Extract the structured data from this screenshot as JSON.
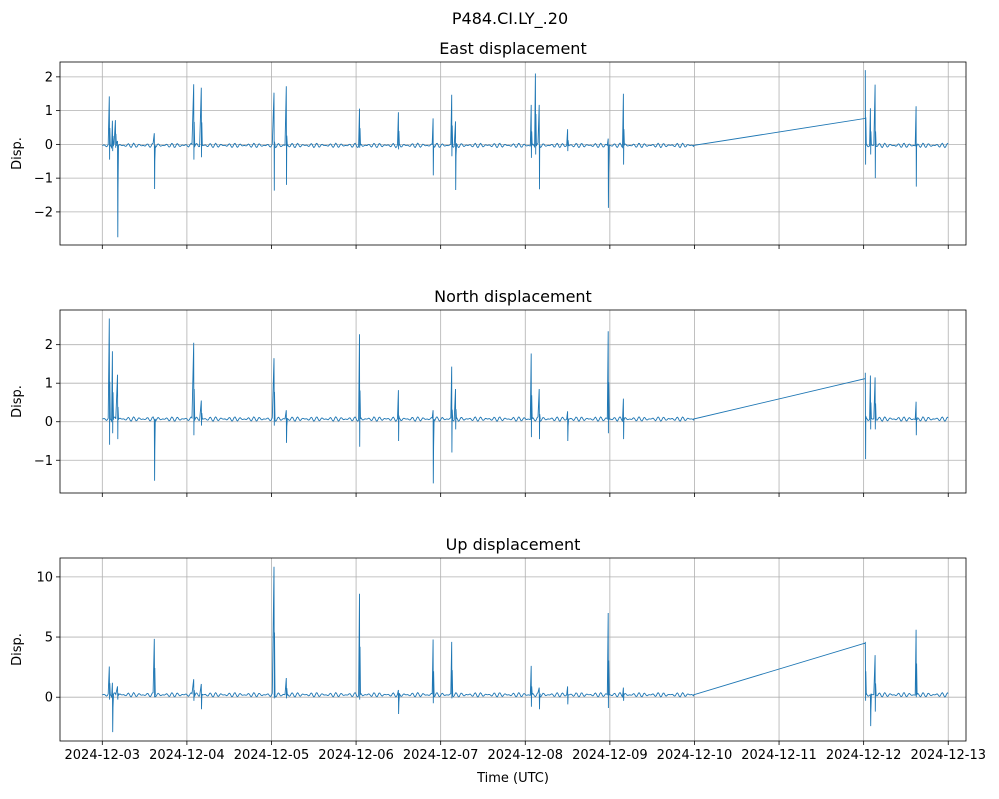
{
  "chart_data": {
    "type": "line",
    "title": "P484.CI.LY_.20",
    "xlabel": "Time (UTC)",
    "x_origin": "2024-12-03",
    "x_unit": "days since x_origin",
    "xlim_days": [
      -0.5,
      10.21
    ],
    "xticks_days": [
      0,
      1,
      2,
      3,
      4,
      5,
      6,
      7,
      8,
      9,
      10
    ],
    "xtick_labels": [
      "2024-12-03",
      "2024-12-04",
      "2024-12-05",
      "2024-12-06",
      "2024-12-07",
      "2024-12-08",
      "2024-12-09",
      "2024-12-10",
      "2024-12-11",
      "2024-12-12",
      "2024-12-13"
    ],
    "grid": true,
    "line_color": "#1f77b4",
    "data_start_day": 0.0,
    "gap": [
      6.99,
      9.02
    ],
    "data_end_day": 10.0,
    "panels": [
      {
        "title": "East displacement",
        "ylabel": "Disp.",
        "ylim": [
          -2.98,
          2.44
        ],
        "yticks": [
          2,
          1,
          0,
          -1,
          -2
        ],
        "ytick_labels": [
          "2",
          "1",
          "0",
          "−1",
          "−2"
        ],
        "baseline": -0.03,
        "gap_end_value": 0.77,
        "spikes": [
          [
            0.083,
            1.42,
            -0.45
          ],
          [
            0.12,
            0.7,
            -0.2
          ],
          [
            0.155,
            0.72,
            -0.1
          ],
          [
            0.18,
            0.1,
            -2.75
          ],
          [
            0.615,
            0.33,
            -1.32
          ],
          [
            1.08,
            1.78,
            -0.45
          ],
          [
            1.17,
            1.68,
            -0.38
          ],
          [
            2.03,
            1.53,
            -1.37
          ],
          [
            2.175,
            1.72,
            -1.2
          ],
          [
            3.04,
            1.06,
            -0.1
          ],
          [
            3.5,
            0.95,
            -0.15
          ],
          [
            3.91,
            0.77,
            -0.92
          ],
          [
            4.13,
            1.47,
            -0.35
          ],
          [
            4.175,
            0.68,
            -1.35
          ],
          [
            5.07,
            1.17,
            -0.4
          ],
          [
            5.12,
            2.1,
            -0.3
          ],
          [
            5.165,
            1.17,
            -1.33
          ],
          [
            5.5,
            0.45,
            -0.2
          ],
          [
            5.98,
            0.17,
            -1.88
          ],
          [
            6.16,
            1.5,
            -0.6
          ],
          [
            9.02,
            2.2,
            -0.6
          ],
          [
            9.08,
            1.07,
            -0.3
          ],
          [
            9.135,
            1.77,
            -1.0
          ],
          [
            9.62,
            1.13,
            -1.25
          ]
        ]
      },
      {
        "title": "North displacement",
        "ylabel": "Disp.",
        "ylim": [
          -1.85,
          2.9
        ],
        "yticks": [
          2,
          1,
          0,
          -1
        ],
        "ytick_labels": [
          "2",
          "1",
          "0",
          "−1"
        ],
        "baseline": 0.07,
        "gap_end_value": 1.12,
        "spikes": [
          [
            0.083,
            2.68,
            -0.6
          ],
          [
            0.12,
            1.83,
            -0.3
          ],
          [
            0.18,
            1.22,
            -0.45
          ],
          [
            0.615,
            0.05,
            -1.53
          ],
          [
            1.08,
            2.05,
            -0.35
          ],
          [
            1.17,
            0.55,
            -0.1
          ],
          [
            2.03,
            1.65,
            -0.1
          ],
          [
            2.175,
            0.3,
            -0.55
          ],
          [
            3.04,
            2.27,
            -0.65
          ],
          [
            3.5,
            0.82,
            -0.5
          ],
          [
            3.91,
            0.3,
            -1.6
          ],
          [
            4.13,
            1.43,
            -0.8
          ],
          [
            4.175,
            0.85,
            -0.2
          ],
          [
            5.07,
            1.77,
            -0.4
          ],
          [
            5.165,
            0.85,
            -0.45
          ],
          [
            5.5,
            0.27,
            -0.5
          ],
          [
            5.98,
            2.35,
            -0.3
          ],
          [
            6.16,
            0.6,
            -0.45
          ],
          [
            9.02,
            1.27,
            -0.97
          ],
          [
            9.08,
            1.2,
            -0.2
          ],
          [
            9.135,
            1.15,
            -0.2
          ],
          [
            9.62,
            0.52,
            -0.35
          ]
        ]
      },
      {
        "title": "Up displacement",
        "ylabel": "Disp.",
        "ylim": [
          -3.64,
          11.57
        ],
        "yticks": [
          10,
          5,
          0
        ],
        "ytick_labels": [
          "10",
          "5",
          "0"
        ],
        "baseline": 0.2,
        "gap_end_value": 4.5,
        "spikes": [
          [
            0.083,
            2.55,
            -0.2
          ],
          [
            0.12,
            1.2,
            -2.9
          ],
          [
            0.18,
            0.9,
            -0.2
          ],
          [
            0.615,
            4.85,
            0.0
          ],
          [
            1.08,
            1.5,
            -0.3
          ],
          [
            1.17,
            1.1,
            -1.0
          ],
          [
            2.03,
            10.85,
            -0.1
          ],
          [
            2.175,
            1.6,
            -0.1
          ],
          [
            3.04,
            8.6,
            -0.2
          ],
          [
            3.5,
            0.6,
            -1.4
          ],
          [
            3.91,
            4.8,
            -0.5
          ],
          [
            4.13,
            4.6,
            -0.1
          ],
          [
            5.07,
            2.6,
            -0.8
          ],
          [
            5.165,
            0.8,
            -1.0
          ],
          [
            5.5,
            0.9,
            -0.6
          ],
          [
            5.98,
            7.0,
            -0.9
          ],
          [
            6.16,
            0.8,
            -0.3
          ],
          [
            9.02,
            4.6,
            -0.3
          ],
          [
            9.08,
            0.2,
            -2.4
          ],
          [
            9.135,
            3.5,
            -1.2
          ],
          [
            9.62,
            5.6,
            0.0
          ]
        ]
      }
    ]
  }
}
